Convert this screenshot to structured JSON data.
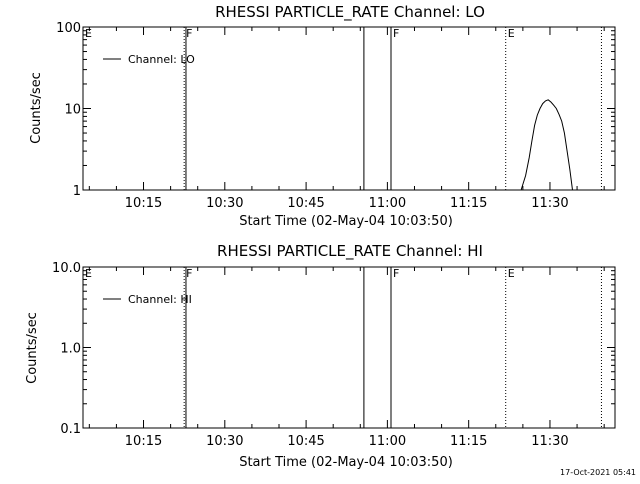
{
  "footer_timestamp": "17-Oct-2021 05:41",
  "chart_data": [
    {
      "type": "line",
      "title": "RHESSI PARTICLE_RATE Channel: LO",
      "xlabel": "Start Time (02-May-04 10:03:50)",
      "ylabel": "Counts/sec",
      "y_scale": "log",
      "ylim": [
        1,
        100
      ],
      "xlim": [
        "10:03:50",
        "11:42:00"
      ],
      "x_ticks": [
        "10:15",
        "10:30",
        "10:45",
        "11:00",
        "11:15",
        "11:30"
      ],
      "y_ticks": [
        "1",
        "10",
        "100"
      ],
      "legend": {
        "label": "Channel: LO",
        "position": "top-left"
      },
      "series": [
        {
          "name": "Channel: LO",
          "x": [
            "11:24:40",
            "11:25:30",
            "11:26:10",
            "11:26:40",
            "11:27:10",
            "11:27:40",
            "11:28:10",
            "11:28:40",
            "11:29:10",
            "11:29:40",
            "11:30:10",
            "11:30:40",
            "11:31:10",
            "11:31:40",
            "11:32:10",
            "11:32:40",
            "11:33:10",
            "11:33:40",
            "11:34:10"
          ],
          "values": [
            1.0,
            1.5,
            2.5,
            4.0,
            6.2,
            8.3,
            10.0,
            11.5,
            12.4,
            12.8,
            12.0,
            11.0,
            10.0,
            8.5,
            7.0,
            5.0,
            3.0,
            1.8,
            1.0
          ]
        }
      ],
      "markers": [
        {
          "time": "10:03:50",
          "label": "E",
          "style": "none"
        },
        {
          "time": "10:22:30",
          "label": "F",
          "style": "dotted"
        },
        {
          "time": "10:22:50",
          "label": "",
          "style": "solid"
        },
        {
          "time": "10:55:40",
          "label": "",
          "style": "solid"
        },
        {
          "time": "11:00:40",
          "label": "F",
          "style": "solid"
        },
        {
          "time": "11:21:50",
          "label": "E",
          "style": "dotted"
        },
        {
          "time": "11:39:30",
          "label": "",
          "style": "dotted"
        }
      ]
    },
    {
      "type": "line",
      "title": "RHESSI PARTICLE_RATE Channel: HI",
      "xlabel": "Start Time (02-May-04 10:03:50)",
      "ylabel": "Counts/sec",
      "y_scale": "log",
      "ylim": [
        0.1,
        10
      ],
      "xlim": [
        "10:03:50",
        "11:42:00"
      ],
      "x_ticks": [
        "10:15",
        "10:30",
        "10:45",
        "11:00",
        "11:15",
        "11:30"
      ],
      "y_ticks": [
        "0.1",
        "1.0",
        "10.0"
      ],
      "legend": {
        "label": "Channel: HI",
        "position": "top-left"
      },
      "series": [
        {
          "name": "Channel: HI",
          "x": [],
          "values": []
        }
      ],
      "markers": [
        {
          "time": "10:03:50",
          "label": "E",
          "style": "none"
        },
        {
          "time": "10:22:30",
          "label": "F",
          "style": "dotted"
        },
        {
          "time": "10:22:50",
          "label": "",
          "style": "solid"
        },
        {
          "time": "10:55:40",
          "label": "",
          "style": "solid"
        },
        {
          "time": "11:00:40",
          "label": "F",
          "style": "solid"
        },
        {
          "time": "11:21:50",
          "label": "E",
          "style": "dotted"
        },
        {
          "time": "11:39:30",
          "label": "",
          "style": "dotted"
        }
      ]
    }
  ]
}
